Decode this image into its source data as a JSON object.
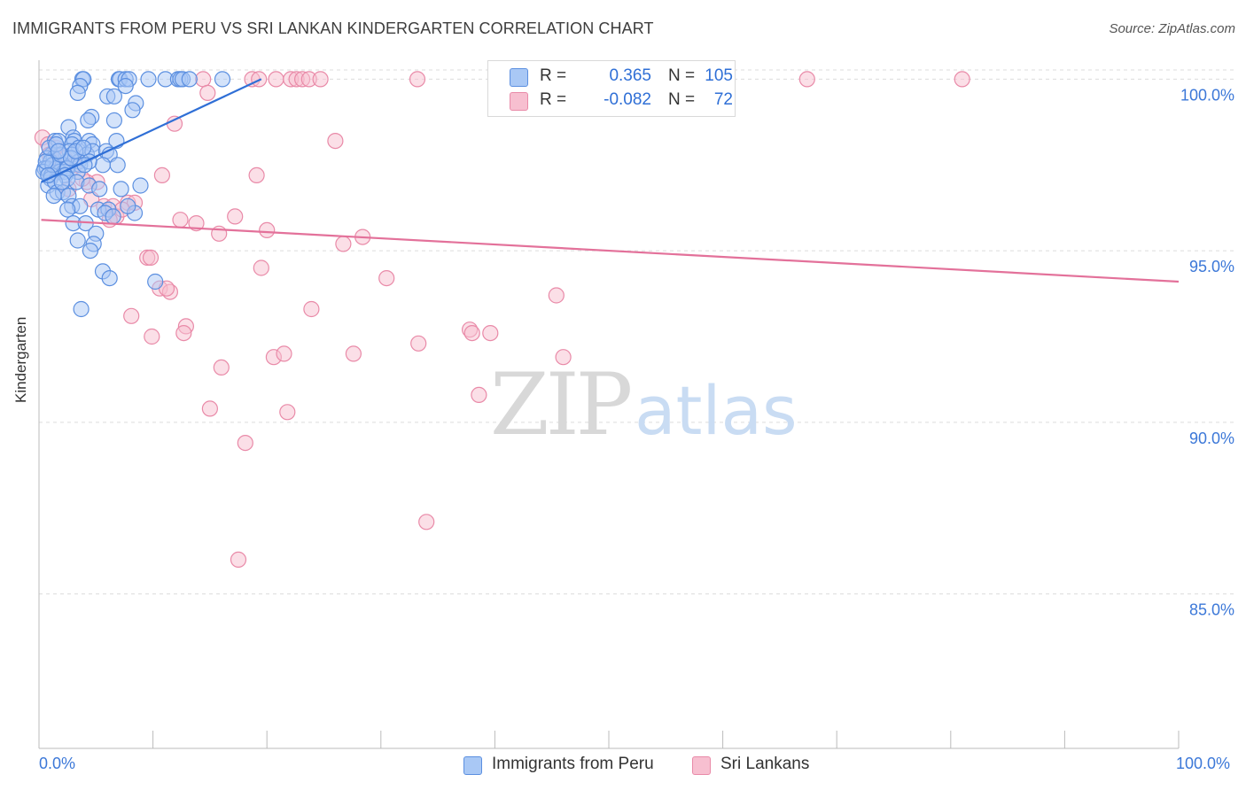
{
  "header": {
    "title": "IMMIGRANTS FROM PERU VS SRI LANKAN KINDERGARTEN CORRELATION CHART",
    "source": "Source: ZipAtlas.com"
  },
  "colors": {
    "blue_fill": "#a9c8f5",
    "blue_stroke": "#5b8fe0",
    "blue_line": "#2f6fd6",
    "pink_fill": "#f7bfd0",
    "pink_stroke": "#e98aa8",
    "pink_line": "#e3719a",
    "tick_text": "#3c78d8",
    "grid": "#dcdcdc"
  },
  "legend": {
    "rows": [
      {
        "r_label": "R =",
        "r_value": "0.365",
        "n_label": "N =",
        "n_value": "105"
      },
      {
        "r_label": "R =",
        "r_value": "-0.082",
        "n_label": "N =",
        "n_value": "72"
      }
    ]
  },
  "bottom_legend": {
    "series1": "Immigrants from Peru",
    "series2": "Sri Lankans"
  },
  "watermark": {
    "zip": "ZIP",
    "atlas": "atlas"
  },
  "chart_data": {
    "type": "scatter",
    "title": "IMMIGRANTS FROM PERU VS SRI LANKAN KINDERGARTEN CORRELATION CHART",
    "xlabel": "",
    "ylabel": "Kindergarten",
    "xlim": [
      0,
      100
    ],
    "ylim": [
      80.5,
      100.5
    ],
    "x_tick_labels": [
      "0.0%",
      "100.0%"
    ],
    "y_ticks": [
      85,
      90,
      95,
      100
    ],
    "y_tick_labels": [
      "85.0%",
      "90.0%",
      "95.0%",
      "100.0%"
    ],
    "series": [
      {
        "name": "Immigrants from Peru",
        "color": "#5b8fe0",
        "trend": {
          "x": [
            0.2,
            19.5
          ],
          "y": [
            97.0,
            100.0
          ]
        },
        "points": [
          [
            3.8,
            100
          ],
          [
            3.9,
            100
          ],
          [
            7.0,
            100
          ],
          [
            7.1,
            100
          ],
          [
            7.6,
            100
          ],
          [
            7.9,
            100
          ],
          [
            9.6,
            100
          ],
          [
            11.1,
            100
          ],
          [
            12.2,
            100
          ],
          [
            12.4,
            100
          ],
          [
            12.6,
            100
          ],
          [
            13.2,
            100
          ],
          [
            16.1,
            100
          ],
          [
            3.6,
            99.8
          ],
          [
            7.6,
            99.8
          ],
          [
            3.4,
            99.6
          ],
          [
            6.0,
            99.5
          ],
          [
            6.6,
            99.5
          ],
          [
            8.5,
            99.3
          ],
          [
            8.2,
            99.1
          ],
          [
            4.6,
            98.9
          ],
          [
            4.3,
            98.8
          ],
          [
            6.6,
            98.8
          ],
          [
            2.6,
            98.6
          ],
          [
            3.0,
            98.3
          ],
          [
            1.4,
            98.2
          ],
          [
            1.7,
            98.2
          ],
          [
            3.1,
            98.2
          ],
          [
            4.4,
            98.2
          ],
          [
            4.7,
            98.1
          ],
          [
            2.9,
            98.1
          ],
          [
            3.5,
            98.0
          ],
          [
            6.8,
            98.2
          ],
          [
            2.7,
            97.9
          ],
          [
            2.9,
            97.8
          ],
          [
            4.2,
            97.8
          ],
          [
            4.7,
            97.9
          ],
          [
            5.9,
            97.9
          ],
          [
            6.2,
            97.8
          ],
          [
            1.1,
            97.8
          ],
          [
            0.7,
            97.7
          ],
          [
            1.3,
            97.7
          ],
          [
            1.0,
            97.6
          ],
          [
            2.4,
            97.6
          ],
          [
            3.5,
            97.6
          ],
          [
            5.6,
            97.5
          ],
          [
            2.1,
            97.5
          ],
          [
            2.4,
            97.4
          ],
          [
            3.6,
            97.5
          ],
          [
            4.4,
            97.6
          ],
          [
            6.9,
            97.5
          ],
          [
            0.5,
            97.4
          ],
          [
            0.7,
            97.4
          ],
          [
            1.5,
            97.4
          ],
          [
            1.8,
            97.3
          ],
          [
            2.2,
            97.3
          ],
          [
            2.5,
            97.4
          ],
          [
            3.4,
            97.3
          ],
          [
            0.4,
            97.3
          ],
          [
            1.1,
            97.2
          ],
          [
            2.3,
            97.2
          ],
          [
            1.0,
            97.1
          ],
          [
            2.5,
            97.1
          ],
          [
            3.3,
            97.0
          ],
          [
            0.8,
            96.9
          ],
          [
            1.4,
            97.0
          ],
          [
            4.4,
            96.9
          ],
          [
            7.2,
            96.8
          ],
          [
            8.9,
            96.9
          ],
          [
            1.6,
            96.7
          ],
          [
            2.1,
            96.7
          ],
          [
            2.6,
            96.6
          ],
          [
            1.3,
            96.6
          ],
          [
            2.9,
            96.3
          ],
          [
            3.6,
            96.3
          ],
          [
            5.2,
            96.2
          ],
          [
            6.1,
            96.2
          ],
          [
            2.5,
            96.2
          ],
          [
            5.8,
            96.1
          ],
          [
            8.4,
            96.1
          ],
          [
            7.8,
            96.3
          ],
          [
            6.5,
            96.0
          ],
          [
            3.0,
            95.8
          ],
          [
            4.1,
            95.8
          ],
          [
            5.0,
            95.5
          ],
          [
            3.4,
            95.3
          ],
          [
            4.8,
            95.2
          ],
          [
            4.5,
            95.0
          ],
          [
            5.6,
            94.4
          ],
          [
            6.2,
            94.2
          ],
          [
            10.2,
            94.1
          ],
          [
            3.7,
            93.3
          ],
          [
            1.2,
            97.5
          ],
          [
            0.6,
            97.6
          ],
          [
            1.9,
            97.8
          ],
          [
            2.8,
            97.7
          ],
          [
            0.9,
            98.0
          ],
          [
            3.2,
            97.9
          ],
          [
            1.5,
            98.1
          ],
          [
            0.8,
            97.2
          ],
          [
            2.0,
            97.0
          ],
          [
            4.0,
            97.5
          ],
          [
            5.3,
            96.8
          ],
          [
            1.7,
            97.9
          ],
          [
            3.9,
            98.0
          ]
        ]
      },
      {
        "name": "Sri Lankans",
        "color": "#e98aa8",
        "trend": {
          "x": [
            0.2,
            100
          ],
          "y": [
            95.9,
            94.1
          ]
        },
        "points": [
          [
            14.4,
            100
          ],
          [
            18.7,
            100
          ],
          [
            19.3,
            100
          ],
          [
            20.8,
            100
          ],
          [
            22.1,
            100
          ],
          [
            22.6,
            100
          ],
          [
            23.1,
            100
          ],
          [
            23.7,
            100
          ],
          [
            24.7,
            100
          ],
          [
            33.2,
            100
          ],
          [
            67.4,
            100
          ],
          [
            81.0,
            100
          ],
          [
            14.8,
            99.6
          ],
          [
            11.9,
            98.7
          ],
          [
            26.0,
            98.2
          ],
          [
            0.3,
            98.3
          ],
          [
            0.8,
            98.1
          ],
          [
            1.5,
            98.0
          ],
          [
            2.3,
            97.7
          ],
          [
            3.1,
            97.5
          ],
          [
            0.9,
            97.8
          ],
          [
            1.8,
            97.4
          ],
          [
            10.8,
            97.2
          ],
          [
            19.1,
            97.2
          ],
          [
            5.1,
            97.0
          ],
          [
            4.2,
            97.0
          ],
          [
            4.6,
            96.5
          ],
          [
            5.7,
            96.3
          ],
          [
            6.5,
            96.3
          ],
          [
            7.8,
            96.4
          ],
          [
            8.4,
            96.4
          ],
          [
            6.8,
            96.0
          ],
          [
            12.4,
            95.9
          ],
          [
            13.8,
            95.8
          ],
          [
            17.2,
            96.0
          ],
          [
            6.2,
            95.9
          ],
          [
            15.8,
            95.5
          ],
          [
            20.0,
            95.6
          ],
          [
            26.7,
            95.2
          ],
          [
            28.4,
            95.4
          ],
          [
            9.5,
            94.8
          ],
          [
            9.8,
            94.8
          ],
          [
            19.5,
            94.5
          ],
          [
            30.5,
            94.2
          ],
          [
            10.6,
            93.9
          ],
          [
            11.5,
            93.8
          ],
          [
            11.2,
            93.9
          ],
          [
            45.4,
            93.7
          ],
          [
            23.9,
            93.3
          ],
          [
            8.1,
            93.1
          ],
          [
            12.9,
            92.8
          ],
          [
            12.7,
            92.6
          ],
          [
            9.9,
            92.5
          ],
          [
            37.8,
            92.7
          ],
          [
            38.0,
            92.6
          ],
          [
            39.6,
            92.6
          ],
          [
            33.3,
            92.3
          ],
          [
            16.0,
            91.6
          ],
          [
            20.6,
            91.9
          ],
          [
            21.5,
            92.0
          ],
          [
            27.6,
            92.0
          ],
          [
            46.0,
            91.9
          ],
          [
            38.6,
            90.8
          ],
          [
            15.0,
            90.4
          ],
          [
            21.8,
            90.3
          ],
          [
            18.1,
            89.4
          ],
          [
            34.0,
            87.1
          ],
          [
            17.5,
            86.0
          ],
          [
            1.2,
            97.3
          ],
          [
            2.6,
            96.8
          ],
          [
            7.3,
            96.2
          ],
          [
            3.8,
            97.1
          ]
        ]
      }
    ]
  }
}
